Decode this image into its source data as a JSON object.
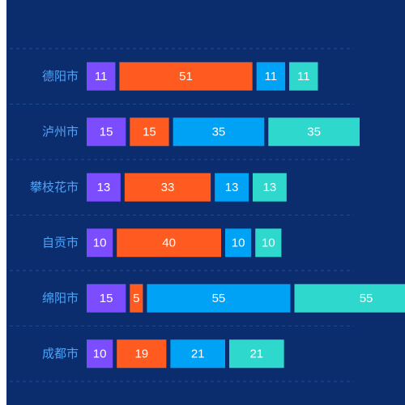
{
  "colors": {
    "background": "#0b2d6e",
    "grid": "#1d4a8f",
    "category_text": "#4fa3f7",
    "segment_text": "#ffffff"
  },
  "chart_data": {
    "type": "bar",
    "orientation": "horizontal",
    "stacked": true,
    "categories": [
      "德阳市",
      "泸州市",
      "攀枝花市",
      "自贡市",
      "绵阳市",
      "成都市"
    ],
    "series": [
      {
        "color": "#7b4dff",
        "values": [
          11,
          15,
          13,
          10,
          15,
          10
        ]
      },
      {
        "color": "#ff5a1f",
        "values": [
          51,
          15,
          33,
          40,
          5,
          19
        ]
      },
      {
        "color": "#00a2f5",
        "values": [
          11,
          35,
          13,
          10,
          55,
          21
        ]
      },
      {
        "color": "#2ed8cc",
        "values": [
          11,
          35,
          13,
          10,
          55,
          21
        ]
      }
    ],
    "data_labels": true,
    "grid": true,
    "title": "",
    "xlabel": "",
    "ylabel": ""
  }
}
